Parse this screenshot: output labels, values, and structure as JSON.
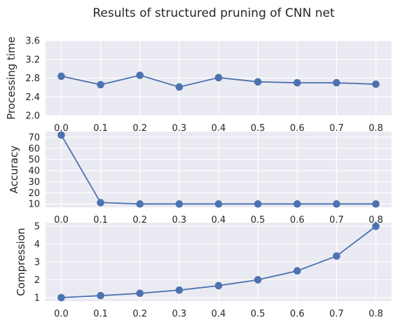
{
  "suptitle": "Results of structured pruning of CNN net",
  "colors": {
    "series": "#4c72b0",
    "panel_background": "#eaeaf2",
    "grid": "#ffffff"
  },
  "chart_data": [
    {
      "type": "line",
      "xlabel": "",
      "ylabel": "Processing time",
      "x": [
        0.0,
        0.1,
        0.2,
        0.3,
        0.4,
        0.5,
        0.6,
        0.7,
        0.8
      ],
      "x_tick_labels": [
        "0.0",
        "0.1",
        "0.2",
        "0.3",
        "0.4",
        "0.5",
        "0.6",
        "0.7",
        "0.8"
      ],
      "y": [
        2.84,
        2.66,
        2.86,
        2.61,
        2.81,
        2.72,
        2.7,
        2.7,
        2.67
      ],
      "ylim": [
        2.0,
        3.6
      ],
      "y_ticks": [
        2.0,
        2.4,
        2.8,
        3.2,
        3.6
      ],
      "y_tick_labels": [
        "2.0",
        "2.4",
        "2.8",
        "3.2",
        "3.6"
      ],
      "marker": "circle",
      "grid": true
    },
    {
      "type": "line",
      "xlabel": "",
      "ylabel": "Accuracy",
      "x": [
        0.0,
        0.1,
        0.2,
        0.3,
        0.4,
        0.5,
        0.6,
        0.7,
        0.8
      ],
      "x_tick_labels": [
        "0.0",
        "0.1",
        "0.2",
        "0.3",
        "0.4",
        "0.5",
        "0.6",
        "0.7",
        "0.8"
      ],
      "y": [
        72.0,
        11.2,
        10.0,
        10.0,
        10.0,
        10.0,
        10.0,
        10.0,
        10.0
      ],
      "ylim": [
        7.0,
        75.0
      ],
      "y_ticks": [
        10,
        20,
        30,
        40,
        50,
        60,
        70
      ],
      "y_tick_labels": [
        "10",
        "20",
        "30",
        "40",
        "50",
        "60",
        "70"
      ],
      "marker": "circle",
      "grid": true
    },
    {
      "type": "line",
      "xlabel": "",
      "ylabel": "Compression",
      "x": [
        0.0,
        0.1,
        0.2,
        0.3,
        0.4,
        0.5,
        0.6,
        0.7,
        0.8
      ],
      "x_tick_labels": [
        "0.0",
        "0.1",
        "0.2",
        "0.3",
        "0.4",
        "0.5",
        "0.6",
        "0.7",
        "0.8"
      ],
      "y": [
        1.0,
        1.11,
        1.24,
        1.42,
        1.67,
        2.0,
        2.5,
        3.33,
        5.0
      ],
      "ylim": [
        0.8,
        5.2
      ],
      "y_ticks": [
        1,
        2,
        3,
        4,
        5
      ],
      "y_tick_labels": [
        "1",
        "2",
        "3",
        "4",
        "5"
      ],
      "marker": "circle",
      "grid": true
    }
  ]
}
